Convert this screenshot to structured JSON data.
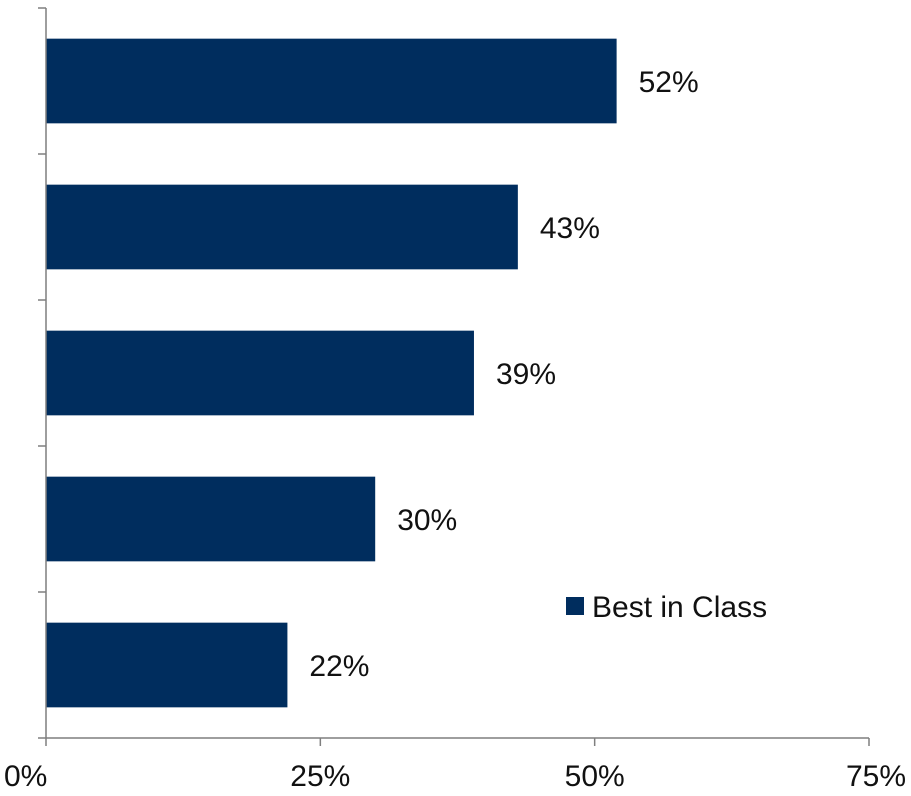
{
  "chart_data": {
    "type": "bar",
    "orientation": "horizontal",
    "categories": [
      "",
      "",
      "",
      "",
      ""
    ],
    "series": [
      {
        "name": "Best in Class",
        "values": [
          52,
          43,
          39,
          30,
          22
        ],
        "labels": [
          "52%",
          "43%",
          "39%",
          "30%",
          "22%"
        ],
        "color": "#002d5e"
      }
    ],
    "xlim": [
      0,
      75
    ],
    "xticks": [
      0,
      25,
      50,
      75
    ],
    "xtick_labels": [
      "0%",
      "25%",
      "50%",
      "75%"
    ],
    "grid": false,
    "legend": {
      "placement": "bottom-right",
      "entries": [
        "Best in Class"
      ]
    }
  }
}
